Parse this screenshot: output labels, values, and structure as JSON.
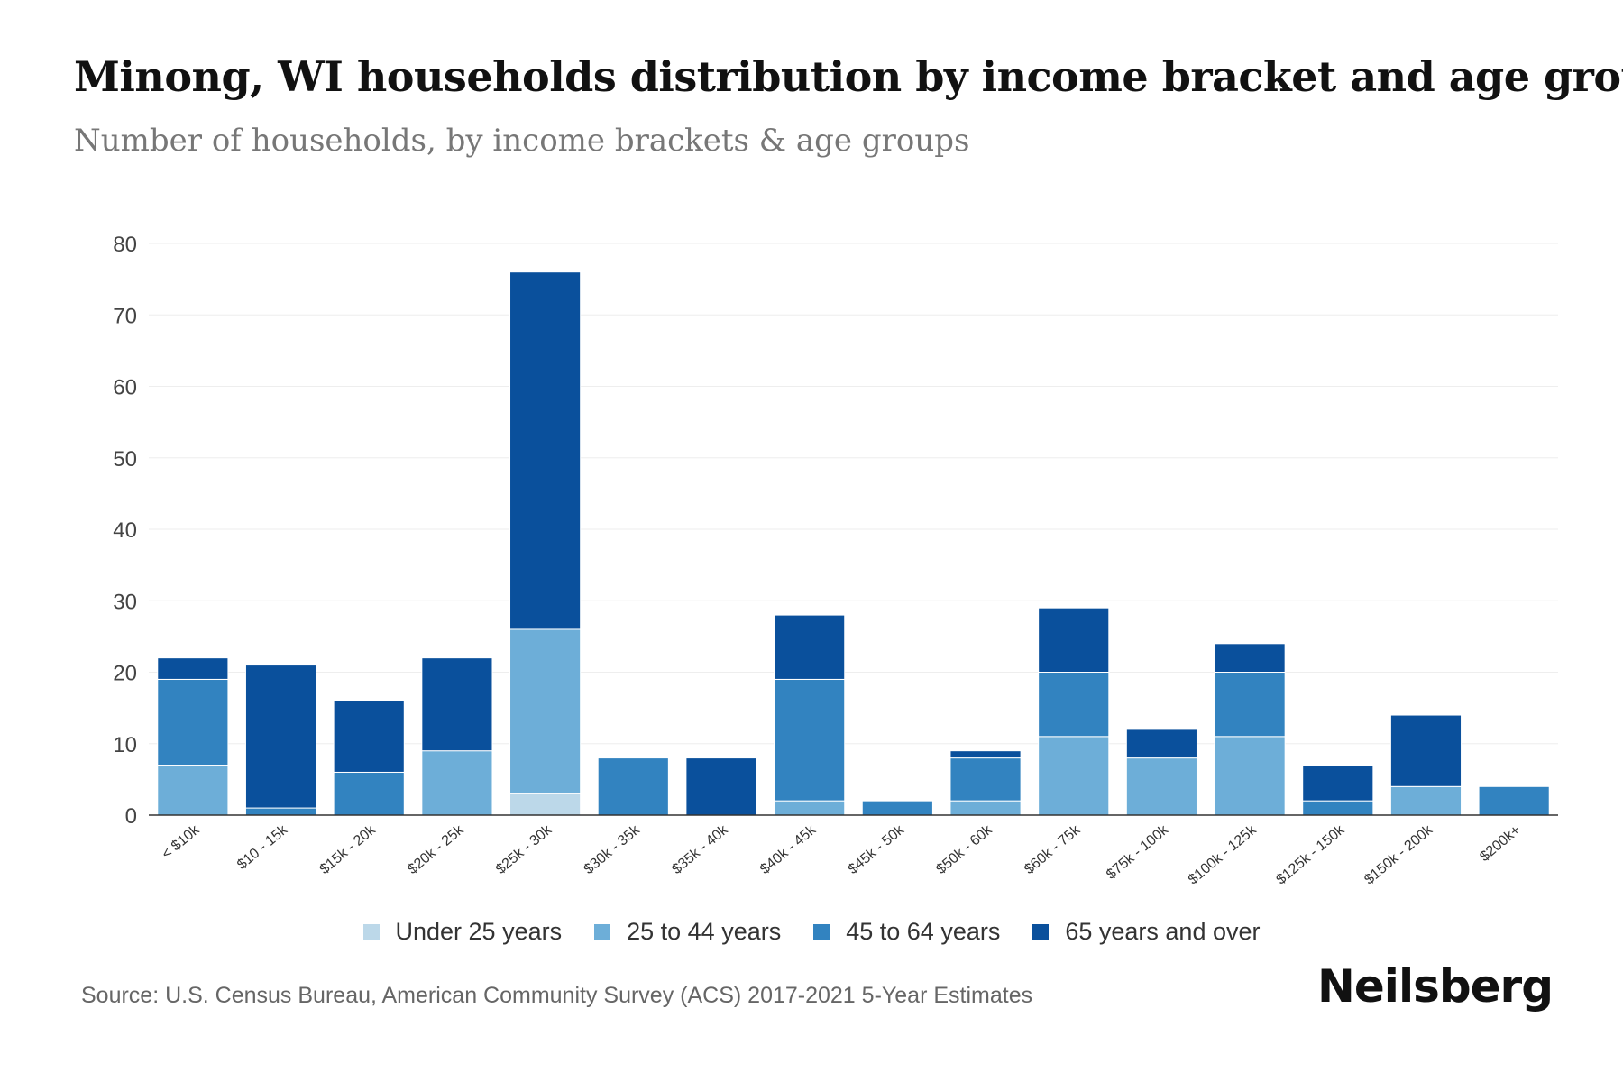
{
  "title": "Minong, WI households distribution by income bracket and age group",
  "subtitle": "Number of households, by income brackets & age groups",
  "source": "Source: U.S. Census Bureau, American Community Survey (ACS) 2017-2021 5-Year Estimates",
  "brand": "Neilsberg",
  "colors": {
    "under_25": "#bcd8e9",
    "age_25_44": "#6daed8",
    "age_45_64": "#3283c0",
    "age_65_plus": "#0a509c",
    "grid": "#eeeeee",
    "axis": "#333333"
  },
  "chart_data": {
    "type": "bar",
    "stacked": true,
    "title": "Minong, WI households distribution by income bracket and age group",
    "xlabel": "",
    "ylabel": "",
    "ylim": [
      0,
      80
    ],
    "yticks": [
      0,
      10,
      20,
      30,
      40,
      50,
      60,
      70,
      80
    ],
    "legend_position": "bottom",
    "categories": [
      "< $10k",
      "$10 - 15k",
      "$15k - 20k",
      "$20k - 25k",
      "$25k - 30k",
      "$30k - 35k",
      "$35k - 40k",
      "$40k - 45k",
      "$45k - 50k",
      "$50k - 60k",
      "$60k - 75k",
      "$75k - 100k",
      "$100k - 125k",
      "$125k - 150k",
      "$150k - 200k",
      "$200k+"
    ],
    "series": [
      {
        "name": "Under 25 years",
        "color_key": "under_25",
        "values": [
          0,
          0,
          0,
          0,
          3,
          0,
          0,
          0,
          0,
          0,
          0,
          0,
          0,
          0,
          0,
          0
        ]
      },
      {
        "name": "25 to 44 years",
        "color_key": "age_25_44",
        "values": [
          7,
          0,
          0,
          9,
          23,
          0,
          0,
          2,
          0,
          2,
          11,
          8,
          11,
          0,
          4,
          0
        ]
      },
      {
        "name": "45 to 64 years",
        "color_key": "age_45_64",
        "values": [
          12,
          1,
          6,
          0,
          0,
          8,
          0,
          17,
          2,
          6,
          9,
          0,
          9,
          2,
          0,
          4
        ]
      },
      {
        "name": "65 years and over",
        "color_key": "age_65_plus",
        "values": [
          3,
          20,
          10,
          13,
          50,
          0,
          8,
          9,
          0,
          1,
          9,
          4,
          4,
          5,
          10,
          0
        ]
      }
    ]
  }
}
